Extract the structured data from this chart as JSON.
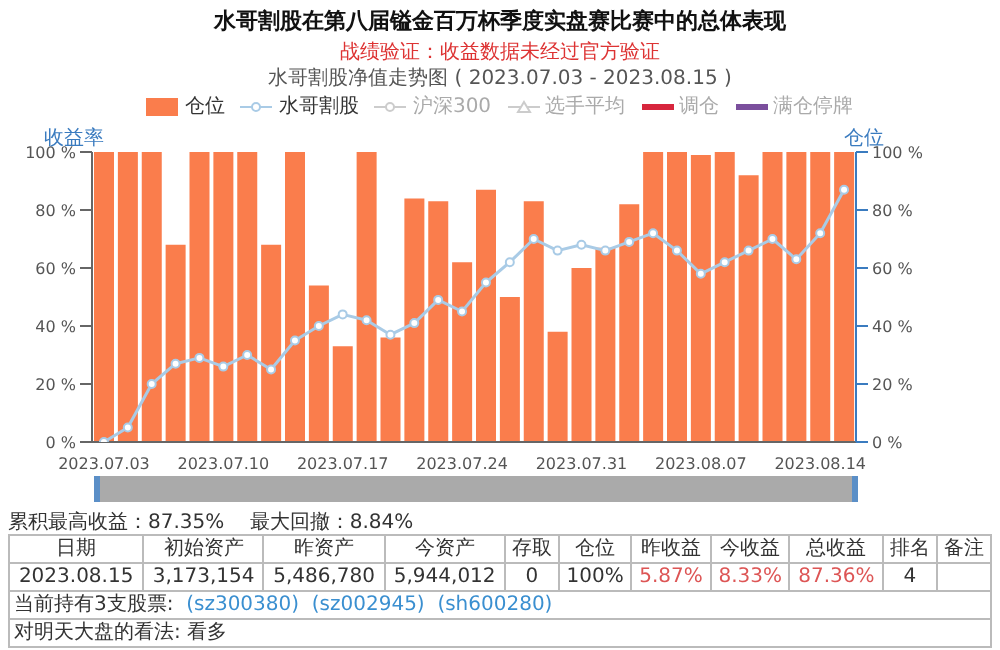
{
  "chart_data": {
    "type": "bar",
    "title": "水哥割股在第八届镒金百万杯季度实盘赛比赛中的总体表现",
    "subtitle": "战绩验证：收益数据未经过官方验证",
    "annotations": [
      "水哥割股净值走势图 ( 2023.07.03 - 2023.08.15 )",
      "累积最高收益：87.35%",
      "最大回撤：8.84%",
      "日期",
      "初始资产",
      "昨资产",
      "今资产",
      "存取",
      "仓位",
      "昨收益",
      "今收益",
      "总收益",
      "排名",
      "备注",
      "2023.08.15",
      "3,173,154",
      "5,486,780",
      "5,944,012",
      "0",
      "100%",
      "5.87%",
      "8.33%",
      "87.36%",
      "4",
      "当前持有3支股票:",
      "(sz300380)",
      "(sz002945)",
      "(sh600280)",
      "对明天大盘的看法: 看多"
    ],
    "ylabel": "收益率",
    "y2label": "仓位",
    "categories": [
      "2023.07.03",
      null,
      null,
      null,
      null,
      "2023.07.10",
      null,
      null,
      null,
      null,
      "2023.07.17",
      null,
      null,
      null,
      null,
      "2023.07.24",
      null,
      null,
      null,
      null,
      "2023.07.31",
      null,
      null,
      null,
      null,
      "2023.08.07",
      null,
      null,
      null,
      null,
      "2023.08.14",
      null
    ],
    "series": [
      {
        "name": "仓位",
        "axis": "y2",
        "color": "#fa7d4c",
        "values": [
          100,
          100,
          100,
          68,
          100,
          100,
          100,
          68,
          100,
          54,
          33,
          100,
          36,
          84,
          83,
          62,
          87,
          50,
          83,
          38,
          60,
          67,
          82,
          100,
          100,
          99,
          100,
          92,
          100,
          100,
          100,
          100
        ]
      },
      {
        "name": "水哥割股",
        "type": "line",
        "marker": "circle",
        "color": "#a9cbe6",
        "values": [
          0,
          5,
          20,
          27,
          29,
          26,
          30,
          25,
          35,
          40,
          44,
          42,
          37,
          41,
          49,
          45,
          55,
          62,
          70,
          66,
          68,
          66,
          69,
          72,
          66,
          58,
          62,
          66,
          70,
          63,
          72,
          87
        ]
      },
      {
        "name": "沪深300",
        "type": "line",
        "marker": "circle",
        "color": "#cccccc",
        "values": [
          null,
          null,
          null,
          null,
          null,
          null,
          null,
          null,
          null,
          null,
          null,
          null,
          null,
          null,
          null,
          null,
          null,
          null,
          null,
          null,
          null,
          null,
          null,
          null,
          null,
          null,
          null,
          null,
          null,
          null,
          null,
          null
        ]
      },
      {
        "name": "选手平均",
        "type": "line",
        "marker": "triangle",
        "color": "#cccccc",
        "values": [
          null,
          null,
          null,
          null,
          null,
          null,
          null,
          null,
          null,
          null,
          null,
          null,
          null,
          null,
          null,
          null,
          null,
          null,
          null,
          null,
          null,
          null,
          null,
          null,
          null,
          null,
          null,
          null,
          null,
          null,
          null,
          null
        ]
      },
      {
        "name": "调仓",
        "type": "line",
        "marker": "none",
        "color": "#d7263d",
        "values": [
          null,
          null,
          null,
          null,
          null,
          null,
          null,
          null,
          null,
          null,
          null,
          null,
          null,
          null,
          null,
          null,
          null,
          null,
          null,
          null,
          null,
          null,
          null,
          null,
          null,
          null,
          null,
          null,
          null,
          null,
          null,
          null
        ]
      },
      {
        "name": "满仓停牌",
        "type": "line",
        "marker": "none",
        "color": "#7b4f9d",
        "values": [
          null,
          null,
          null,
          null,
          null,
          null,
          null,
          null,
          null,
          null,
          null,
          null,
          null,
          null,
          null,
          null,
          null,
          null,
          null,
          null,
          null,
          null,
          null,
          null,
          null,
          null,
          null,
          null,
          null,
          null,
          null,
          null
        ]
      }
    ],
    "ylim": [
      0,
      100
    ],
    "yticks": [
      {
        "value": 0,
        "label": "0 %"
      },
      {
        "value": 20,
        "label": "20 %"
      },
      {
        "value": 40,
        "label": "40 %"
      },
      {
        "value": 60,
        "label": "60 %"
      },
      {
        "value": 80,
        "label": "80 %"
      },
      {
        "value": 100,
        "label": "100 %"
      }
    ],
    "y2lim": [
      0,
      100
    ],
    "y2ticks": [
      {
        "value": 0,
        "label": "0 %"
      },
      {
        "value": 20,
        "label": "20 %"
      },
      {
        "value": 40,
        "label": "40 %"
      },
      {
        "value": 60,
        "label": "60 %"
      },
      {
        "value": 80,
        "label": "80 %"
      },
      {
        "value": 100,
        "label": "100 %"
      }
    ],
    "grid": false,
    "legend": "top"
  }
}
